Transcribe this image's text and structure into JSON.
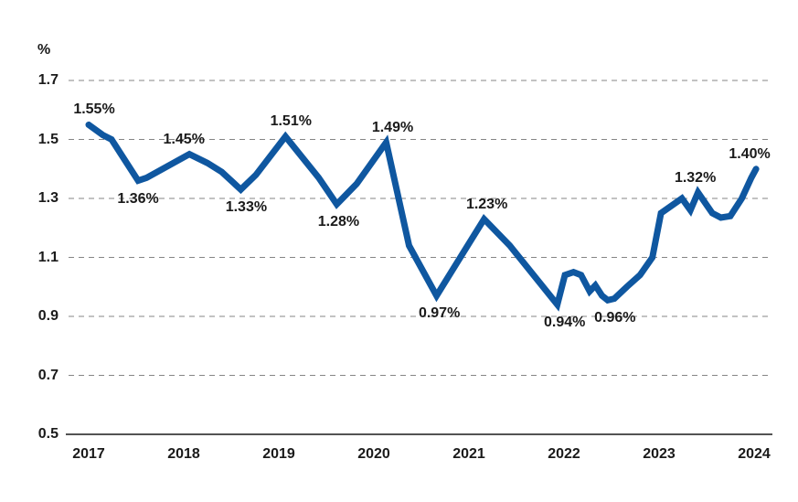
{
  "chart_data": {
    "type": "line",
    "title": "",
    "y_axis": {
      "unit_label": "%",
      "ticks": [
        1.7,
        1.5,
        1.3,
        1.1,
        0.9,
        0.7,
        0.5
      ],
      "min": 0.5,
      "max": 1.7,
      "gridlines": "dashed-horizontal"
    },
    "x_axis": {
      "ticks": [
        "2017",
        "2018",
        "2019",
        "2020",
        "2021",
        "2022",
        "2023",
        "2024"
      ],
      "min": 2017,
      "max": 2024
    },
    "legend": "none",
    "series": [
      {
        "name": "rate-percent",
        "color": "#0F57A0",
        "points": [
          [
            2017.0,
            1.55
          ],
          [
            2017.15,
            1.515
          ],
          [
            2017.24,
            1.5
          ],
          [
            2017.52,
            1.36
          ],
          [
            2017.61,
            1.37
          ],
          [
            2018.06,
            1.45
          ],
          [
            2018.25,
            1.42
          ],
          [
            2018.4,
            1.39
          ],
          [
            2018.6,
            1.33
          ],
          [
            2018.76,
            1.38
          ],
          [
            2019.07,
            1.51
          ],
          [
            2019.42,
            1.37
          ],
          [
            2019.61,
            1.28
          ],
          [
            2019.82,
            1.35
          ],
          [
            2020.13,
            1.49
          ],
          [
            2020.37,
            1.14
          ],
          [
            2020.66,
            0.97
          ],
          [
            2021.16,
            1.23
          ],
          [
            2021.43,
            1.14
          ],
          [
            2021.93,
            0.94
          ],
          [
            2022.01,
            1.04
          ],
          [
            2022.1,
            1.05
          ],
          [
            2022.18,
            1.04
          ],
          [
            2022.27,
            0.985
          ],
          [
            2022.33,
            1.005
          ],
          [
            2022.4,
            0.97
          ],
          [
            2022.46,
            0.955
          ],
          [
            2022.53,
            0.96
          ],
          [
            2022.66,
            1.0
          ],
          [
            2022.8,
            1.04
          ],
          [
            2022.93,
            1.1
          ],
          [
            2023.02,
            1.25
          ],
          [
            2023.24,
            1.3
          ],
          [
            2023.33,
            1.26
          ],
          [
            2023.41,
            1.32
          ],
          [
            2023.56,
            1.25
          ],
          [
            2023.65,
            1.235
          ],
          [
            2023.75,
            1.24
          ],
          [
            2023.87,
            1.3
          ],
          [
            2023.97,
            1.37
          ],
          [
            2024.02,
            1.4
          ]
        ]
      }
    ],
    "annotations": [
      {
        "label": "1.55%",
        "x": 2017.0,
        "value": 1.55,
        "position": "above",
        "dx": 6
      },
      {
        "label": "1.36%",
        "x": 2017.52,
        "value": 1.36,
        "position": "below",
        "dx": 0
      },
      {
        "label": "1.45%",
        "x": 2018.06,
        "value": 1.45,
        "position": "above",
        "dx": -6
      },
      {
        "label": "1.33%",
        "x": 2018.6,
        "value": 1.33,
        "position": "below",
        "dx": 6
      },
      {
        "label": "1.51%",
        "x": 2019.07,
        "value": 1.51,
        "position": "above",
        "dx": 6
      },
      {
        "label": "1.28%",
        "x": 2019.61,
        "value": 1.28,
        "position": "below",
        "dx": 2
      },
      {
        "label": "1.49%",
        "x": 2020.13,
        "value": 1.49,
        "position": "above",
        "dx": 7
      },
      {
        "label": "0.97%",
        "x": 2020.66,
        "value": 0.97,
        "position": "below",
        "dx": 3
      },
      {
        "label": "1.23%",
        "x": 2021.16,
        "value": 1.23,
        "position": "above",
        "dx": 3
      },
      {
        "label": "0.94%",
        "x": 2021.93,
        "value": 0.94,
        "position": "below",
        "dx": 8
      },
      {
        "label": "0.96%",
        "x": 2022.46,
        "value": 0.955,
        "position": "below",
        "dx": 8
      },
      {
        "label": "1.32%",
        "x": 2023.41,
        "value": 1.32,
        "position": "above",
        "dx": -3
      },
      {
        "label": "1.40%",
        "x": 2024.02,
        "value": 1.4,
        "position": "above",
        "dx": -7
      }
    ],
    "style": {
      "line_color": "#0F57A0",
      "grid_color": "#858585",
      "axis_color": "#1a1a1a",
      "text_color": "#1a1a1a",
      "background": "#ffffff"
    }
  }
}
